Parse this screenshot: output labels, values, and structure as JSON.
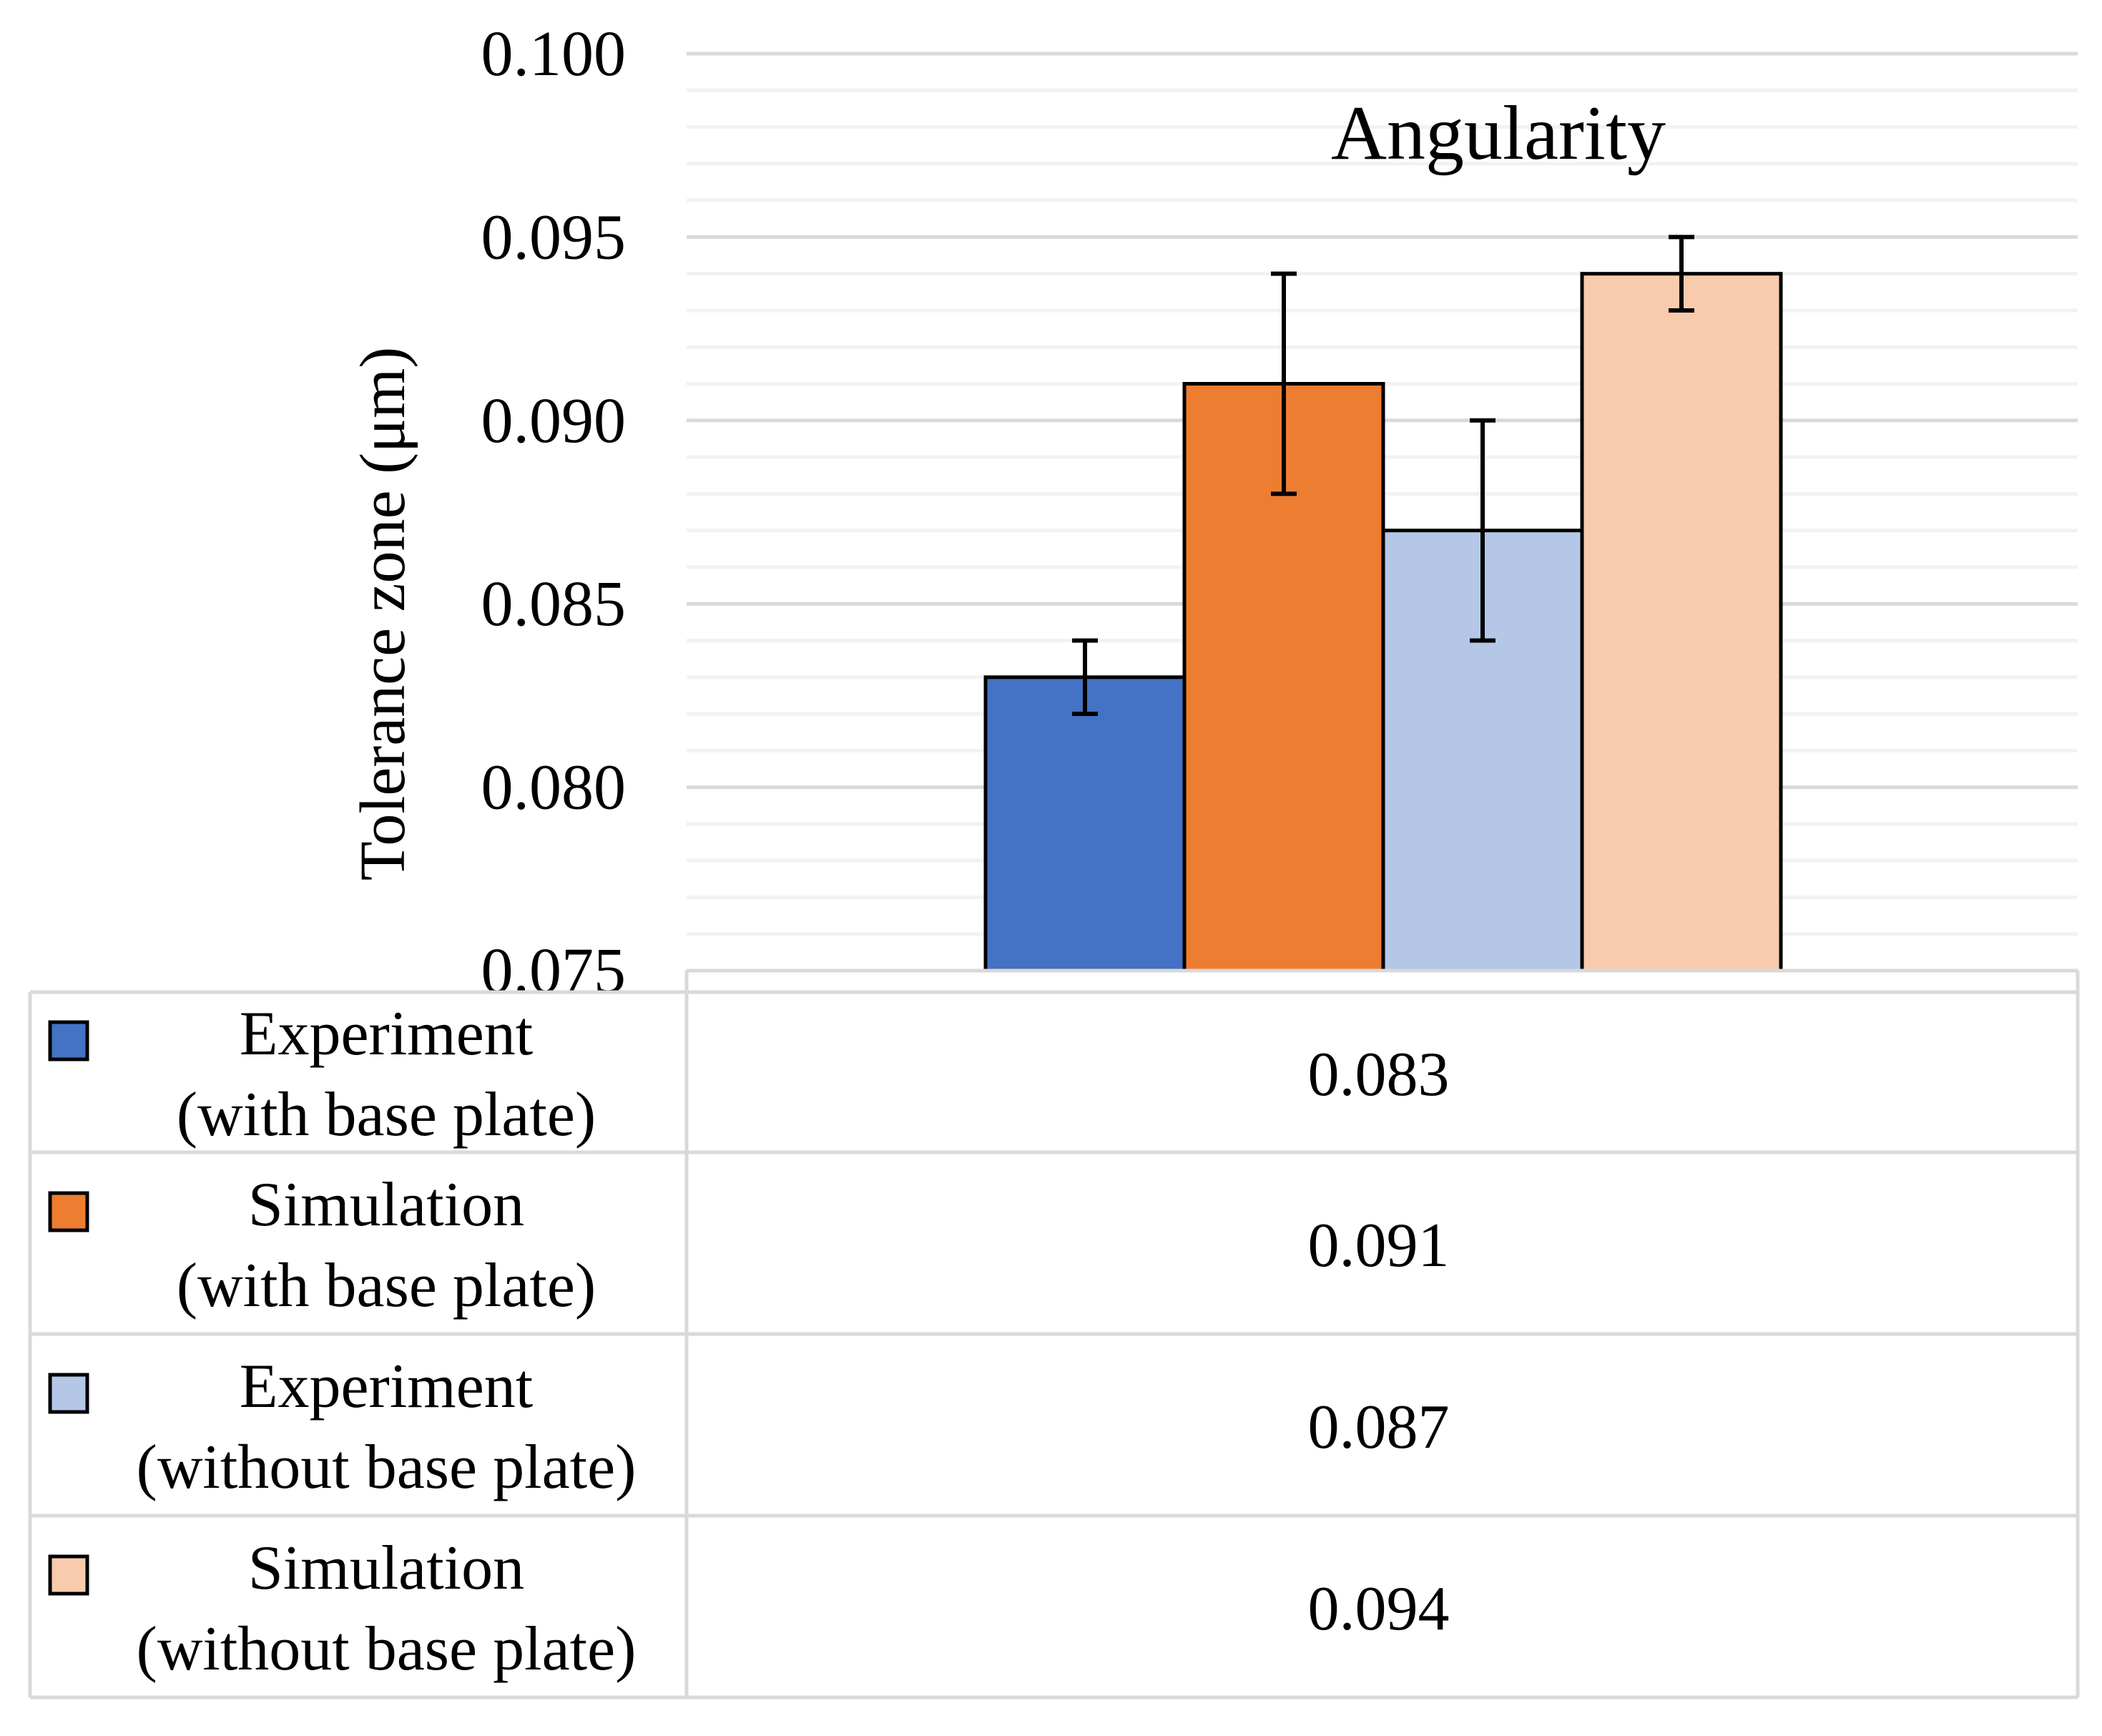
{
  "chart_data": {
    "type": "bar",
    "title": "Angularity",
    "xlabel": "",
    "ylabel": "Tolerance zone (μm)",
    "ylim": [
      0.075,
      0.1
    ],
    "yticks": [
      "0.075",
      "0.080",
      "0.085",
      "0.090",
      "0.095",
      "0.100"
    ],
    "minor_grid_step": 0.001,
    "grid": true,
    "legend": "data table below chart",
    "series": [
      {
        "name": "Experiment (with base plate)",
        "name_lines": [
          "Experiment",
          "(with base plate)"
        ],
        "value": 0.083,
        "label": "0.083",
        "error": 0.001,
        "color": "#4472C4"
      },
      {
        "name": "Simulation (with base plate)",
        "name_lines": [
          "Simulation",
          "(with base plate)"
        ],
        "value": 0.091,
        "label": "0.091",
        "error": 0.003,
        "color": "#ED7D31"
      },
      {
        "name": "Experiment (without base plate)",
        "name_lines": [
          "Experiment",
          "(without base plate)"
        ],
        "value": 0.087,
        "label": "0.087",
        "error": 0.003,
        "color": "#B4C7E7"
      },
      {
        "name": "Simulation (without base plate)",
        "name_lines": [
          "Simulation",
          "(without base plate)"
        ],
        "value": 0.094,
        "label": "0.094",
        "error": 0.001,
        "color": "#F8CBAD"
      }
    ]
  }
}
